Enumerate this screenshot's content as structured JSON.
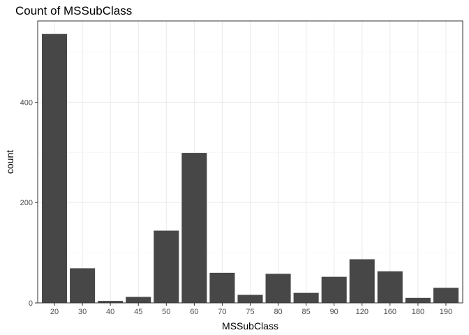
{
  "chart_data": {
    "type": "bar",
    "title": "Count of MSSubClass",
    "xlabel": "MSSubClass",
    "ylabel": "count",
    "categories": [
      "20",
      "30",
      "40",
      "45",
      "50",
      "60",
      "70",
      "75",
      "80",
      "85",
      "90",
      "120",
      "160",
      "180",
      "190"
    ],
    "values": [
      536,
      69,
      4,
      12,
      144,
      299,
      60,
      16,
      58,
      20,
      52,
      87,
      63,
      10,
      30
    ],
    "ylim": [
      0,
      562
    ],
    "yticks": [
      0,
      200,
      400
    ],
    "grid": true,
    "legend": "none",
    "bar_color": "#474747"
  }
}
